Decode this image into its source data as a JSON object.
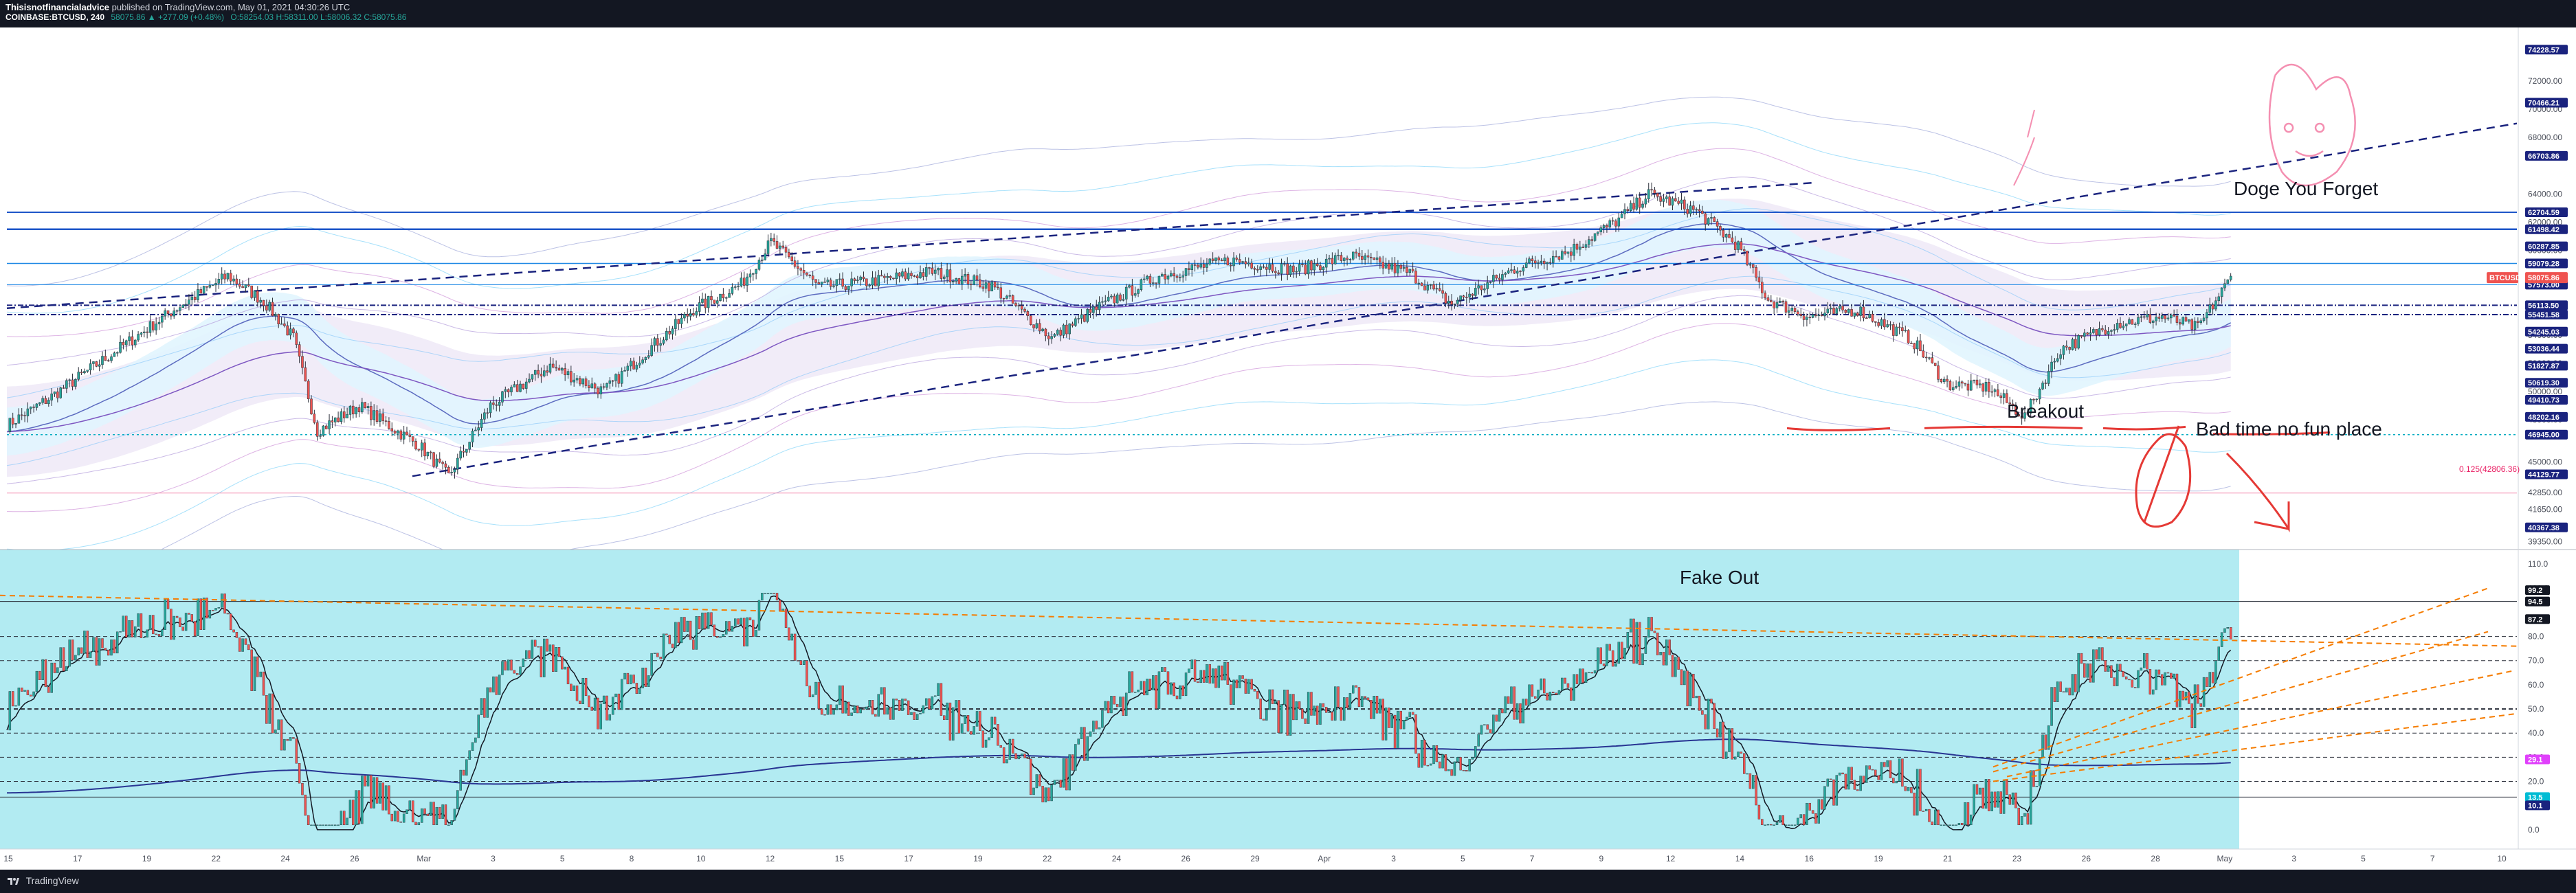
{
  "header": {
    "author": "Thisisnotfinancialadvice",
    "published": "published on TradingView.com, May 01, 2021 04:30:26 UTC",
    "symbol": "COINBASE:BTCUSD, 240",
    "quote": "58075.86  ▲ +277.09 (+0.48%)",
    "ohlc": "O:58254.03 H:58311.00 L:58006.32 C:58075.86"
  },
  "footer": {
    "brand": "TradingView"
  },
  "colors": {
    "candle_up": "#26a69a",
    "candle_down": "#ef5350",
    "band_fill": "#e1f5fe",
    "cloud_fill": "#ede7f6",
    "trend_line": "#1a237e",
    "level_line": "#1e56c8",
    "osc_bg": "#b2ebf2",
    "orange": "#f57c00",
    "drawing": "#e53935",
    "price_tag": "#ef5350",
    "axis_tag": "#1a237e"
  },
  "annotations": {
    "doge": "Doge You Forget",
    "breakout": "Breakout",
    "bad_time": "Bad time no fun place",
    "fake_out": "Fake Out",
    "fib": "0.125(42806.36)"
  },
  "chart_data": {
    "type": "candlestick",
    "x_tick_labels": [
      "15",
      "17",
      "19",
      "22",
      "24",
      "26",
      "Mar",
      "3",
      "5",
      "8",
      "10",
      "12",
      "15",
      "17",
      "19",
      "22",
      "24",
      "26",
      "29",
      "Apr",
      "3",
      "5",
      "7",
      "9",
      "12",
      "14",
      "16",
      "19",
      "21",
      "23",
      "26",
      "28",
      "May",
      "3",
      "5",
      "7",
      "10"
    ],
    "price_axis_labels": [
      "72000.00",
      "70000.00",
      "68000.00",
      "64000.00",
      "62000.00",
      "60000.00",
      "56000.00",
      "54000.00",
      "52000.00",
      "50000.00",
      "48000.00",
      "45000.00",
      "42850.00",
      "41650.00",
      "39350.00"
    ],
    "price_tags": [
      {
        "label": "74228.57",
        "price": 74228.57
      },
      {
        "label": "70466.21",
        "price": 70466.21
      },
      {
        "label": "66703.86",
        "price": 66703.86
      },
      {
        "label": "62704.59",
        "price": 62704.59
      },
      {
        "label": "61498.42",
        "price": 61498.42
      },
      {
        "label": "60287.85",
        "price": 60287.85
      },
      {
        "label": "59079.28",
        "price": 59079.28
      },
      {
        "label": "57573.00",
        "price": 57573.0
      },
      {
        "label": "56113.50",
        "price": 56113.5
      },
      {
        "label": "55451.58",
        "price": 55451.58
      },
      {
        "label": "54245.03",
        "price": 54245.03
      },
      {
        "label": "53036.44",
        "price": 53036.44
      },
      {
        "label": "51827.87",
        "price": 51827.87
      },
      {
        "label": "50619.30",
        "price": 50619.3
      },
      {
        "label": "49410.73",
        "price": 49410.73
      },
      {
        "label": "48202.16",
        "price": 48202.16
      },
      {
        "label": "46945.00",
        "price": 46945.0
      },
      {
        "label": "44129.77",
        "price": 44129.77
      },
      {
        "label": "40367.38",
        "price": 40367.38
      }
    ],
    "last_price": {
      "symbol": "BTCUSD",
      "value": "58075.86"
    },
    "y_range": [
      38800,
      75800
    ],
    "key_points": [
      {
        "t": 0,
        "p": 47600
      },
      {
        "t": 14,
        "p": 49500
      },
      {
        "t": 36,
        "p": 52800
      },
      {
        "t": 56,
        "p": 55800
      },
      {
        "t": 74,
        "p": 58200
      },
      {
        "t": 86,
        "p": 56400
      },
      {
        "t": 96,
        "p": 53800
      },
      {
        "t": 104,
        "p": 47200
      },
      {
        "t": 118,
        "p": 49000
      },
      {
        "t": 130,
        "p": 47300
      },
      {
        "t": 138,
        "p": 46200
      },
      {
        "t": 148,
        "p": 44000
      },
      {
        "t": 162,
        "p": 49000
      },
      {
        "t": 182,
        "p": 51800
      },
      {
        "t": 200,
        "p": 50000
      },
      {
        "t": 214,
        "p": 52800
      },
      {
        "t": 230,
        "p": 55800
      },
      {
        "t": 246,
        "p": 57600
      },
      {
        "t": 256,
        "p": 60600
      },
      {
        "t": 272,
        "p": 57400
      },
      {
        "t": 290,
        "p": 57800
      },
      {
        "t": 310,
        "p": 58500
      },
      {
        "t": 330,
        "p": 57500
      },
      {
        "t": 350,
        "p": 53800
      },
      {
        "t": 366,
        "p": 56000
      },
      {
        "t": 386,
        "p": 58200
      },
      {
        "t": 410,
        "p": 59300
      },
      {
        "t": 432,
        "p": 58600
      },
      {
        "t": 450,
        "p": 59600
      },
      {
        "t": 470,
        "p": 58400
      },
      {
        "t": 484,
        "p": 56200
      },
      {
        "t": 506,
        "p": 58800
      },
      {
        "t": 524,
        "p": 60000
      },
      {
        "t": 540,
        "p": 62200
      },
      {
        "t": 550,
        "p": 64000
      },
      {
        "t": 566,
        "p": 62800
      },
      {
        "t": 580,
        "p": 60300
      },
      {
        "t": 590,
        "p": 56500
      },
      {
        "t": 604,
        "p": 55300
      },
      {
        "t": 620,
        "p": 55800
      },
      {
        "t": 638,
        "p": 53700
      },
      {
        "t": 650,
        "p": 50500
      },
      {
        "t": 664,
        "p": 50300
      },
      {
        "t": 676,
        "p": 48200
      },
      {
        "t": 688,
        "p": 53000
      },
      {
        "t": 706,
        "p": 54800
      },
      {
        "t": 722,
        "p": 55300
      },
      {
        "t": 734,
        "p": 54500
      },
      {
        "t": 745,
        "p": 58075
      }
    ],
    "osc_axis_labels": [
      "110.0",
      "100.0",
      "80.0",
      "70.0",
      "60.0",
      "50.0",
      "40.0",
      "30.0",
      "20.0",
      "10.0",
      "0.0"
    ],
    "osc_tags": [
      {
        "label": "99.2",
        "value": 99.2
      },
      {
        "label": "94.5",
        "value": 94.5
      },
      {
        "label": "87.2",
        "value": 87.2
      },
      {
        "label": "29.1",
        "value": 29.1
      },
      {
        "label": "13.5",
        "value": 13.5
      },
      {
        "label": "10.1",
        "value": 10.1
      }
    ],
    "osc_range": [
      -8,
      116
    ]
  }
}
